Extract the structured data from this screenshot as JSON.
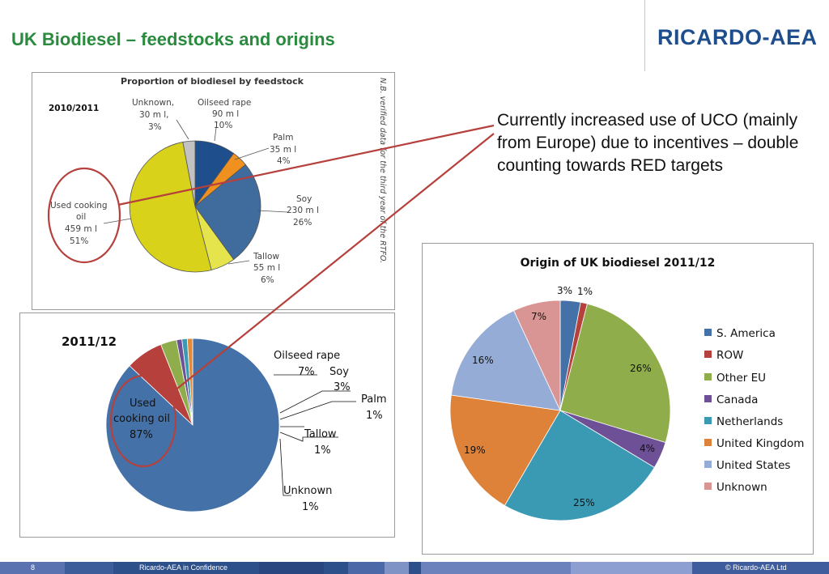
{
  "slide": {
    "title": "UK Biodiesel – feedstocks and origins",
    "logo": "RICARDO-AEA",
    "callout": "Currently increased use of UCO (mainly from Europe) due to incentives – double counting towards RED targets"
  },
  "footer": {
    "page_number": "8",
    "confidential": "Ricardo-AEA in Confidence",
    "copyright": "© Ricardo-AEA Ltd"
  },
  "chart_data": [
    {
      "type": "pie",
      "title": "Proportion of biodiesel by feedstock",
      "period": "2010/2011",
      "note": "N.B. verified data for the third year of the RTFO.",
      "slices": [
        {
          "label": "Oilseed rape",
          "value": 10,
          "volume": "90 m l",
          "pct": "10%",
          "color": "#1f4e8c"
        },
        {
          "label": "Palm",
          "value": 4,
          "volume": "35 m l",
          "pct": "4%",
          "color": "#f0901e"
        },
        {
          "label": "Soy",
          "value": 26,
          "volume": "230 m l",
          "pct": "26%",
          "color": "#3f6b9d"
        },
        {
          "label": "Tallow",
          "value": 6,
          "volume": "55 m l",
          "pct": "6%",
          "color": "#e6e44c"
        },
        {
          "label": "Used cooking oil",
          "value": 51,
          "volume": "459 m l",
          "pct": "51%",
          "color": "#d8d31a"
        },
        {
          "label": "Unknown,",
          "value": 3,
          "volume": "30 m l,",
          "pct": "3%",
          "color": "#c2c2c2"
        }
      ]
    },
    {
      "type": "pie",
      "title": "2011/12",
      "slices": [
        {
          "label": "Used cooking oil",
          "value": 87,
          "pct": "87%",
          "color": "#4472a8"
        },
        {
          "label": "Oilseed rape",
          "value": 7,
          "pct": "7%",
          "color": "#b5403c"
        },
        {
          "label": "Soy",
          "value": 3,
          "pct": "3%",
          "color": "#8fad4a"
        },
        {
          "label": "Palm",
          "value": 1,
          "pct": "1%",
          "color": "#6e5096"
        },
        {
          "label": "Tallow",
          "value": 1,
          "pct": "1%",
          "color": "#3a9ab4"
        },
        {
          "label": "Unknown",
          "value": 1,
          "pct": "1%",
          "color": "#e08a3a"
        }
      ]
    },
    {
      "type": "pie",
      "title": "Origin of UK biodiesel 2011/12",
      "legend": "right",
      "slices": [
        {
          "label": "S. America",
          "value": 3,
          "pct": "3%",
          "color": "#4472a8"
        },
        {
          "label": "ROW",
          "value": 1,
          "pct": "1%",
          "color": "#b5403c"
        },
        {
          "label": "Other EU",
          "value": 26,
          "pct": "26%",
          "color": "#8fad4a"
        },
        {
          "label": "Canada",
          "value": 4,
          "pct": "4%",
          "color": "#6e5096"
        },
        {
          "label": "Netherlands",
          "value": 25,
          "pct": "25%",
          "color": "#3a9ab4"
        },
        {
          "label": "United Kingdom",
          "value": 19,
          "pct": "19%",
          "color": "#dd8238"
        },
        {
          "label": "United States",
          "value": 16,
          "pct": "16%",
          "color": "#95add6"
        },
        {
          "label": "Unknown",
          "value": 7,
          "pct": "7%",
          "color": "#d99594"
        }
      ]
    }
  ]
}
